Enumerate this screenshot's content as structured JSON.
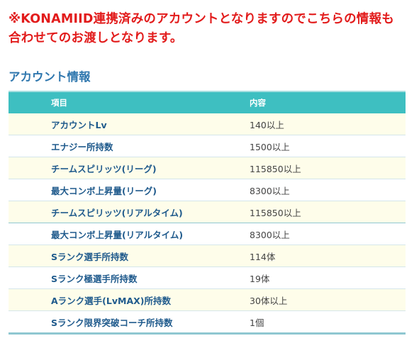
{
  "notice": {
    "line1": "※KONAMIID連携済みのアカウントとなりますのでこちらの情報も",
    "line2": "合わせてのお渡しとなります。"
  },
  "section": {
    "title": "アカウント情報"
  },
  "table": {
    "headers": [
      "項目",
      "内容"
    ],
    "rows": [
      {
        "item": "アカウントLv",
        "value": "140以上"
      },
      {
        "item": "エナジー所持数",
        "value": "1500以上"
      },
      {
        "item": "チームスピリッツ(リーグ)",
        "value": "115850以上"
      },
      {
        "item": "最大コンボ上昇量(リーグ)",
        "value": "8300以上"
      },
      {
        "item": "チームスピリッツ(リアルタイム)",
        "value": "115850以上"
      },
      {
        "item": "最大コンボ上昇量(リアルタイム)",
        "value": "8300以上"
      },
      {
        "item": "Sランク選手所持数",
        "value": "114体"
      },
      {
        "item": "Sランク極選手所持数",
        "value": "19体"
      },
      {
        "item": "Aランク選手(LvMAX)所持数",
        "value": "30体以上"
      },
      {
        "item": "Sランク限界突破コーチ所持数",
        "value": "1個"
      }
    ]
  },
  "colors": {
    "notice": "#e21b1b",
    "title": "#2f77ae",
    "header_bg": "#3ebfc1",
    "row_alt_bg": "#fefdea",
    "item_text": "#1f5a8c"
  }
}
